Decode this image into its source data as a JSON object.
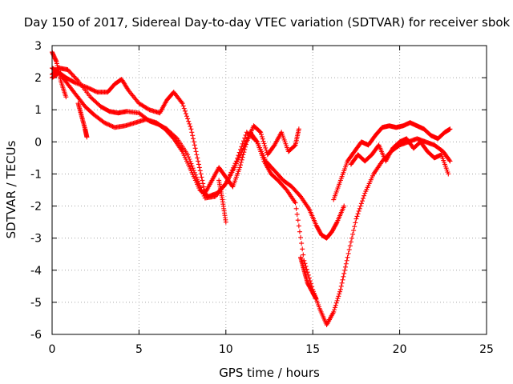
{
  "chart_data": {
    "type": "scatter",
    "title": "Day 150 of 2017, Sidereal Day-to-day VTEC variation (SDTVAR) for receiver sbok",
    "xlabel": "GPS time / hours",
    "ylabel": "SDTVAR / TECUs",
    "xlim": [
      0,
      25
    ],
    "ylim": [
      -6,
      3
    ],
    "xticks": [
      "0",
      "5",
      "10",
      "15",
      "20",
      "25"
    ],
    "yticks": [
      "-6",
      "-5",
      "-4",
      "-3",
      "-2",
      "-1",
      "0",
      "1",
      "2",
      "3"
    ],
    "grid": true,
    "marker": "+",
    "color": "#ff0000",
    "series": [
      {
        "x": [
          0.0,
          0.3,
          0.8,
          1.3,
          2.0,
          2.6,
          3.2,
          3.6,
          4.0,
          4.4,
          5.0,
          5.6,
          6.2,
          6.6,
          7.0,
          7.5,
          8.0,
          8.4,
          8.8,
          9.2,
          9.6,
          10.0,
          10.4,
          10.8,
          11.2,
          11.6,
          12.0,
          12.4,
          12.8,
          13.2,
          13.6,
          14.0,
          14.2
        ],
        "y": [
          2.3,
          2.2,
          2.0,
          1.85,
          1.7,
          1.55,
          1.55,
          1.8,
          1.95,
          1.6,
          1.2,
          1.0,
          0.9,
          1.3,
          1.55,
          1.2,
          0.4,
          -0.6,
          -1.6,
          -1.2,
          -0.8,
          -1.1,
          -1.4,
          -0.8,
          0.0,
          0.5,
          0.3,
          -0.4,
          -0.1,
          0.3,
          -0.3,
          -0.1,
          0.4
        ]
      },
      {
        "x": [
          0.0,
          0.4,
          0.9,
          1.5,
          2.2,
          2.8,
          3.3,
          3.8,
          4.3,
          5.0,
          5.6,
          6.1,
          6.6,
          7.2,
          7.8,
          8.3,
          8.8,
          9.4,
          10.0,
          10.6,
          11.2,
          11.8,
          12.3,
          12.8,
          13.3,
          13.8,
          14.3,
          14.8,
          15.2,
          15.5,
          15.8,
          16.1,
          16.4,
          16.8
        ],
        "y": [
          2.1,
          2.3,
          2.25,
          1.9,
          1.4,
          1.1,
          0.95,
          0.9,
          0.95,
          0.9,
          0.65,
          0.55,
          0.4,
          0.1,
          -0.4,
          -1.1,
          -1.75,
          -1.7,
          -1.3,
          -0.6,
          0.3,
          0.0,
          -0.6,
          -0.9,
          -1.2,
          -1.4,
          -1.7,
          -2.1,
          -2.6,
          -2.9,
          -3.0,
          -2.8,
          -2.5,
          -2.0
        ]
      },
      {
        "x": [
          0.0,
          0.4,
          0.9,
          1.4,
          1.9,
          2.4,
          3.0,
          3.6,
          4.2,
          4.8,
          5.4,
          6.0,
          6.5,
          7.0,
          7.5,
          8.0,
          8.5,
          9.0,
          9.5,
          10.0,
          10.5,
          11.0,
          11.4,
          11.8,
          12.2,
          12.6,
          13.0,
          13.5,
          14.0,
          14.5,
          15.0,
          15.4,
          15.8,
          16.2,
          16.6,
          17.0,
          17.5,
          18.0,
          18.5,
          19.0,
          19.5,
          20.0,
          20.5,
          21.0,
          21.5,
          22.0,
          22.5,
          22.9
        ],
        "y": [
          2.0,
          2.15,
          1.8,
          1.45,
          1.1,
          0.85,
          0.6,
          0.45,
          0.5,
          0.6,
          0.7,
          0.6,
          0.4,
          0.1,
          -0.3,
          -0.9,
          -1.5,
          -1.7,
          -1.6,
          -1.3,
          -0.8,
          -0.2,
          0.3,
          0.0,
          -0.6,
          -1.0,
          -1.2,
          -1.5,
          -1.9,
          -3.7,
          -4.6,
          -5.2,
          -5.7,
          -5.3,
          -4.6,
          -3.6,
          -2.4,
          -1.6,
          -1.0,
          -0.6,
          -0.3,
          -0.1,
          0.0,
          0.1,
          0.0,
          -0.1,
          -0.3,
          -0.6
        ]
      },
      {
        "x": [
          16.2,
          16.6,
          17.0,
          17.4,
          17.8,
          18.2,
          18.6,
          19.0,
          19.4,
          19.8,
          20.2,
          20.6,
          21.0,
          21.4,
          21.8,
          22.2,
          22.6,
          22.9
        ],
        "y": [
          -1.8,
          -1.2,
          -0.6,
          -0.3,
          0.0,
          -0.1,
          0.2,
          0.45,
          0.5,
          0.45,
          0.5,
          0.6,
          0.5,
          0.4,
          0.2,
          0.1,
          0.3,
          0.4
        ]
      },
      {
        "x": [
          17.2,
          17.6,
          18.0,
          18.4,
          18.8,
          19.2,
          19.6,
          20.0,
          20.4,
          20.8,
          21.2,
          21.6,
          22.0,
          22.4,
          22.8
        ],
        "y": [
          -0.7,
          -0.4,
          -0.6,
          -0.4,
          -0.1,
          -0.6,
          -0.2,
          0.0,
          0.1,
          -0.2,
          0.0,
          -0.3,
          -0.5,
          -0.4,
          -1.0
        ]
      },
      {
        "x": [
          0.0,
          0.25,
          0.5,
          0.8
        ],
        "y": [
          2.8,
          2.5,
          1.9,
          1.4
        ]
      },
      {
        "x": [
          1.5,
          1.7,
          1.9,
          2.0
        ],
        "y": [
          1.2,
          0.8,
          0.4,
          0.15
        ]
      },
      {
        "x": [
          9.6,
          9.8,
          10.0
        ],
        "y": [
          -1.2,
          -1.8,
          -2.5
        ]
      },
      {
        "x": [
          14.3,
          14.5,
          14.7,
          15.0,
          15.2
        ],
        "y": [
          -3.6,
          -4.0,
          -4.4,
          -4.7,
          -4.9
        ]
      }
    ]
  }
}
